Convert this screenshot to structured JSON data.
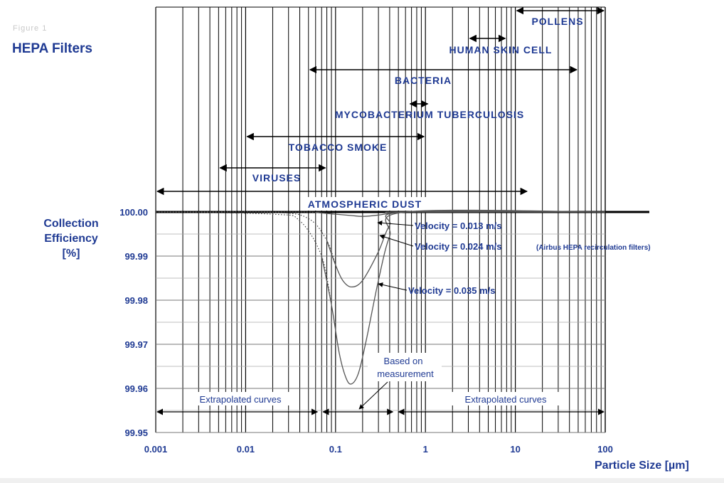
{
  "header": {
    "caption": "Figure 1",
    "title": "HEPA Filters"
  },
  "chart_data": {
    "type": "line",
    "ylabel": "Collection Efficiency [%]",
    "ylabel_lines": [
      "Collection",
      "Efficiency",
      "[%]"
    ],
    "xlabel": "Particle Size [µm]",
    "x_scale": "log",
    "xlim": [
      0.001,
      100
    ],
    "ylim": [
      99.95,
      100.0
    ],
    "x_ticks": [
      "0.001",
      "0.01",
      "0.1",
      "1",
      "10",
      "100"
    ],
    "y_ticks": [
      "100.00",
      "99.99",
      "99.98",
      "99.97",
      "99.96",
      "99.95"
    ],
    "grid": true,
    "series": [
      {
        "name": "Velocity = 0.013 m/s",
        "note": "",
        "points": [
          [
            0.001,
            100.0
          ],
          [
            0.03,
            100.0
          ],
          [
            0.06,
            99.9999
          ],
          [
            0.1,
            99.9995
          ],
          [
            0.15,
            99.9992
          ],
          [
            0.2,
            99.999
          ],
          [
            0.3,
            99.9993
          ],
          [
            0.4,
            99.9997
          ],
          [
            0.6,
            100.0
          ],
          [
            100,
            100.0
          ]
        ]
      },
      {
        "name": "Velocity = 0.024 m/s",
        "note": "(Airbus HEPA recirculation filters)",
        "points": [
          [
            0.001,
            100.0
          ],
          [
            0.02,
            99.9999
          ],
          [
            0.05,
            99.9985
          ],
          [
            0.08,
            99.9935
          ],
          [
            0.1,
            99.988
          ],
          [
            0.12,
            99.9845
          ],
          [
            0.15,
            99.983
          ],
          [
            0.2,
            99.9845
          ],
          [
            0.3,
            99.991
          ],
          [
            0.4,
            99.997
          ],
          [
            0.6,
            100.0
          ],
          [
            100,
            100.0
          ]
        ]
      },
      {
        "name": "Velocity = 0.035 m/s",
        "note": "",
        "points": [
          [
            0.001,
            100.0
          ],
          [
            0.02,
            99.9995
          ],
          [
            0.04,
            99.998
          ],
          [
            0.07,
            99.99
          ],
          [
            0.09,
            99.979
          ],
          [
            0.11,
            99.968
          ],
          [
            0.13,
            99.9625
          ],
          [
            0.15,
            99.961
          ],
          [
            0.18,
            99.9635
          ],
          [
            0.22,
            99.971
          ],
          [
            0.3,
            99.9845
          ],
          [
            0.4,
            99.9945
          ],
          [
            0.6,
            100.0
          ],
          [
            100,
            100.0
          ]
        ]
      }
    ],
    "particle_ranges": [
      {
        "label": "POLLENS",
        "x": [
          10,
          100
        ]
      },
      {
        "label": "HUMAN SKIN CELL",
        "x": [
          3,
          8
        ]
      },
      {
        "label": "BACTERIA",
        "x": [
          0.05,
          50
        ]
      },
      {
        "label": "MYCOBACTERIUM TUBERCULOSIS",
        "x": [
          0.65,
          1.1
        ]
      },
      {
        "label": "TOBACCO SMOKE",
        "x": [
          0.01,
          1
        ]
      },
      {
        "label": "VIRUSES",
        "x": [
          0.005,
          0.08
        ]
      },
      {
        "label": "ATMOSPHERIC DUST",
        "x": [
          0.001,
          14
        ]
      }
    ],
    "annotations": {
      "extrapolated_left": "Extrapolated curves",
      "extrapolated_right": "Extrapolated curves",
      "measured_line1": "Based on",
      "measured_line2": "measurement",
      "measured_range": [
        0.07,
        0.45
      ]
    }
  }
}
